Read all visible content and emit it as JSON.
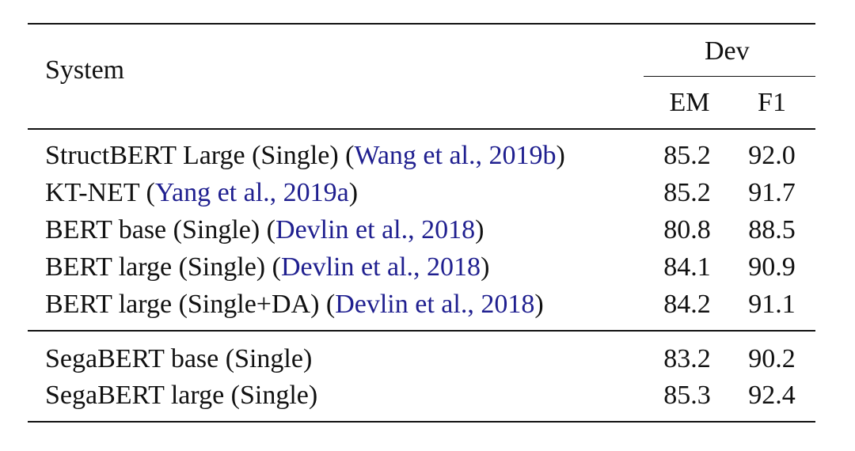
{
  "header": {
    "system": "System",
    "group": "Dev",
    "col_em": "EM",
    "col_f1": "F1"
  },
  "rows": [
    {
      "pre": "StructBERT Large (Single) (",
      "cite": "Wang et al., 2019b",
      "post": ")",
      "em": "85.2",
      "f1": "92.0"
    },
    {
      "pre": "KT-NET (",
      "cite": "Yang et al., 2019a",
      "post": ")",
      "em": "85.2",
      "f1": "91.7"
    },
    {
      "pre": "BERT base (Single) (",
      "cite": "Devlin et al., 2018",
      "post": ")",
      "em": "80.8",
      "f1": "88.5"
    },
    {
      "pre": "BERT large (Single) (",
      "cite": "Devlin et al., 2018",
      "post": ")",
      "em": "84.1",
      "f1": "90.9"
    },
    {
      "pre": "BERT large (Single+DA) (",
      "cite": "Devlin et al., 2018",
      "post": ")",
      "em": "84.2",
      "f1": "91.1"
    },
    {
      "pre": "SegaBERT base (Single)",
      "cite": "",
      "post": "",
      "em": "83.2",
      "f1": "90.2"
    },
    {
      "pre": "SegaBERT large (Single)",
      "cite": "",
      "post": "",
      "em": "85.3",
      "f1": "92.4"
    }
  ],
  "colors": {
    "citation": "#1f1f8f"
  }
}
